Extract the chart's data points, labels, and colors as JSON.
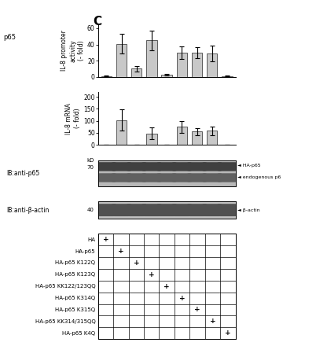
{
  "bar1_values": [
    1,
    41,
    10,
    45,
    3,
    30,
    30,
    29,
    1
  ],
  "bar1_errors": [
    0.5,
    12,
    3,
    12,
    1,
    8,
    7,
    10,
    0.5
  ],
  "bar1_ylabel": "IL-8 promoter\nactivity\n(- fold)",
  "bar1_ylim": [
    0,
    65
  ],
  "bar1_yticks": [
    0,
    20,
    40,
    60
  ],
  "bar2_values": [
    1,
    103,
    1,
    48,
    1,
    75,
    55,
    58,
    1
  ],
  "bar2_errors": [
    0.5,
    45,
    0.5,
    25,
    0.5,
    25,
    15,
    18,
    0.5
  ],
  "bar2_ylabel": "IL-8 mRNA\n(- fold)",
  "bar2_ylim": [
    0,
    220
  ],
  "bar2_yticks": [
    0,
    50,
    100,
    150,
    200
  ],
  "bar_color": "#c8c8c8",
  "bar_edgecolor": "#444444",
  "n_bars": 9,
  "wb_label1": "IB:anti-p65",
  "wb_label2": "IB:anti-β-actin",
  "kD_label1": "kD",
  "kD_value1": "70",
  "kD_value2": "40",
  "wb1_bg": "#b8b8b8",
  "wb2_bg": "#c0c0c0",
  "wb1_band_top_color": "#404040",
  "wb1_band_bot_color": "#606060",
  "wb2_band_color": "#505050",
  "table_rows": [
    "HA",
    "HA-p65",
    "HA-p65 K122Q",
    "HA-p65 K123Q",
    "HA-p65 KK122/123QQ",
    "HA-p65 K314Q",
    "HA-p65 K315Q",
    "HA-p65 KK314/315QQ",
    "HA-p65 K4Q"
  ],
  "table_plus_cols": [
    0,
    1,
    2,
    3,
    4,
    5,
    6,
    7,
    8
  ],
  "n_cols": 9,
  "panel_label": "C",
  "left_label": "p65",
  "background_color": "#ffffff"
}
